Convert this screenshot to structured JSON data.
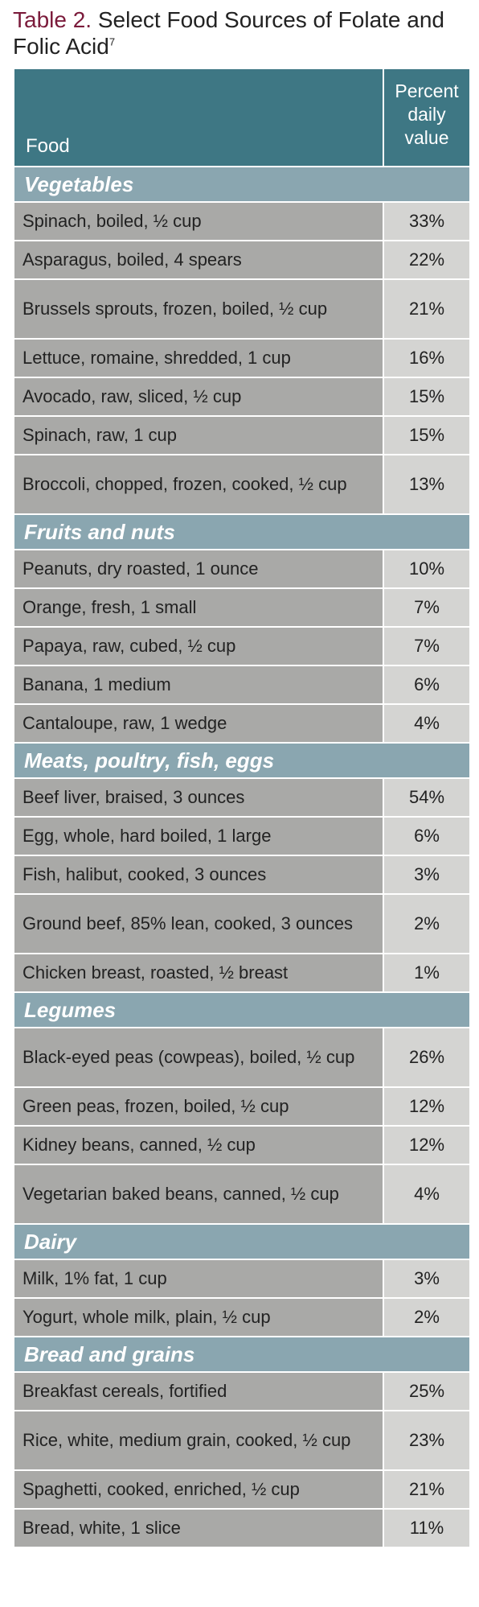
{
  "title": {
    "label": "Table 2.",
    "text": "Select Food Sources of Folate and Folic Acid",
    "ref": "7"
  },
  "header": {
    "food": "Food",
    "pct_line1": "Percent",
    "pct_line2": "daily",
    "pct_line3": "value"
  },
  "sections": [
    {
      "name": "Vegetables",
      "items": [
        {
          "food": "Spinach, boiled, ½ cup",
          "pct": "33%"
        },
        {
          "food": "Asparagus, boiled, 4 spears",
          "pct": "22%"
        },
        {
          "food": "Brussels sprouts, frozen, boiled, ½ cup",
          "pct": "21%"
        },
        {
          "food": "Lettuce, romaine, shredded, 1 cup",
          "pct": "16%"
        },
        {
          "food": "Avocado, raw, sliced, ½ cup",
          "pct": "15%"
        },
        {
          "food": "Spinach, raw, 1 cup",
          "pct": "15%"
        },
        {
          "food": "Broccoli, chopped, frozen, cooked, ½ cup",
          "pct": "13%"
        }
      ]
    },
    {
      "name": "Fruits and nuts",
      "items": [
        {
          "food": "Peanuts, dry roasted, 1 ounce",
          "pct": "10%"
        },
        {
          "food": "Orange, fresh, 1 small",
          "pct": "7%"
        },
        {
          "food": "Papaya, raw, cubed, ½ cup",
          "pct": "7%"
        },
        {
          "food": "Banana, 1 medium",
          "pct": "6%"
        },
        {
          "food": "Cantaloupe, raw, 1 wedge",
          "pct": "4%"
        }
      ]
    },
    {
      "name": "Meats, poultry, fish, eggs",
      "items": [
        {
          "food": "Beef liver, braised, 3 ounces",
          "pct": "54%"
        },
        {
          "food": "Egg, whole, hard boiled, 1 large",
          "pct": "6%"
        },
        {
          "food": "Fish, halibut, cooked, 3 ounces",
          "pct": "3%"
        },
        {
          "food": "Ground beef, 85% lean, cooked, 3 ounces",
          "pct": "2%"
        },
        {
          "food": "Chicken breast, roasted, ½ breast",
          "pct": "1%"
        }
      ]
    },
    {
      "name": "Legumes",
      "items": [
        {
          "food": "Black-eyed peas (cowpeas), boiled, ½ cup",
          "pct": "26%"
        },
        {
          "food": "Green peas, frozen, boiled, ½ cup",
          "pct": "12%"
        },
        {
          "food": "Kidney beans, canned, ½ cup",
          "pct": "12%"
        },
        {
          "food": "Vegetarian baked beans, canned, ½ cup",
          "pct": "4%"
        }
      ]
    },
    {
      "name": "Dairy",
      "items": [
        {
          "food": "Milk, 1% fat, 1 cup",
          "pct": "3%"
        },
        {
          "food": "Yogurt, whole milk, plain, ½ cup",
          "pct": "2%"
        }
      ]
    },
    {
      "name": "Bread and grains",
      "items": [
        {
          "food": "Breakfast cereals, fortified",
          "pct": "25%"
        },
        {
          "food": "Rice, white, medium grain, cooked, ½ cup",
          "pct": "23%"
        },
        {
          "food": "Spaghetti, cooked, enriched, ½ cup",
          "pct": "21%"
        },
        {
          "food": "Bread, white, 1 slice",
          "pct": "11%"
        }
      ]
    }
  ]
}
